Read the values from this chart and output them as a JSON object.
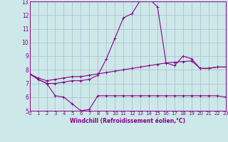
{
  "xlabel": "Windchill (Refroidissement éolien,°C)",
  "xlim": [
    0,
    23
  ],
  "ylim": [
    5,
    13
  ],
  "yticks": [
    5,
    6,
    7,
    8,
    9,
    10,
    11,
    12,
    13
  ],
  "xticks": [
    0,
    1,
    2,
    3,
    4,
    5,
    6,
    7,
    8,
    9,
    10,
    11,
    12,
    13,
    14,
    15,
    16,
    17,
    18,
    19,
    20,
    21,
    22,
    23
  ],
  "bg_color": "#cce8e8",
  "line_color": "#880088",
  "grid_color": "#aabbcc",
  "line1_x": [
    0,
    1,
    2,
    3,
    4,
    5,
    6,
    7,
    8,
    9,
    10,
    11,
    12,
    13,
    14,
    15,
    16,
    17,
    18,
    19,
    20,
    21,
    22,
    23
  ],
  "line1_y": [
    7.7,
    7.3,
    7.0,
    6.1,
    6.0,
    5.5,
    5.0,
    5.1,
    6.1,
    6.1,
    6.1,
    6.1,
    6.1,
    6.1,
    6.1,
    6.1,
    6.1,
    6.1,
    6.1,
    6.1,
    6.1,
    6.1,
    6.1,
    6.0
  ],
  "line2_x": [
    0,
    1,
    2,
    3,
    4,
    5,
    6,
    7,
    8,
    9,
    10,
    11,
    12,
    13,
    14,
    15,
    16,
    17,
    18,
    19,
    20,
    21,
    22,
    23
  ],
  "line2_y": [
    7.7,
    7.3,
    7.0,
    7.0,
    7.1,
    7.2,
    7.2,
    7.3,
    7.6,
    8.8,
    10.3,
    11.8,
    12.1,
    13.1,
    13.2,
    12.6,
    8.5,
    8.3,
    9.0,
    8.8,
    8.1,
    8.1,
    8.2,
    8.2
  ],
  "line3_x": [
    0,
    1,
    2,
    3,
    4,
    5,
    6,
    7,
    8,
    9,
    10,
    11,
    12,
    13,
    14,
    15,
    16,
    17,
    18,
    19,
    20,
    21,
    22,
    23
  ],
  "line3_y": [
    7.7,
    7.4,
    7.2,
    7.3,
    7.4,
    7.5,
    7.5,
    7.6,
    7.7,
    7.8,
    7.9,
    8.0,
    8.1,
    8.2,
    8.3,
    8.4,
    8.5,
    8.55,
    8.6,
    8.65,
    8.1,
    8.1,
    8.2,
    8.2
  ]
}
